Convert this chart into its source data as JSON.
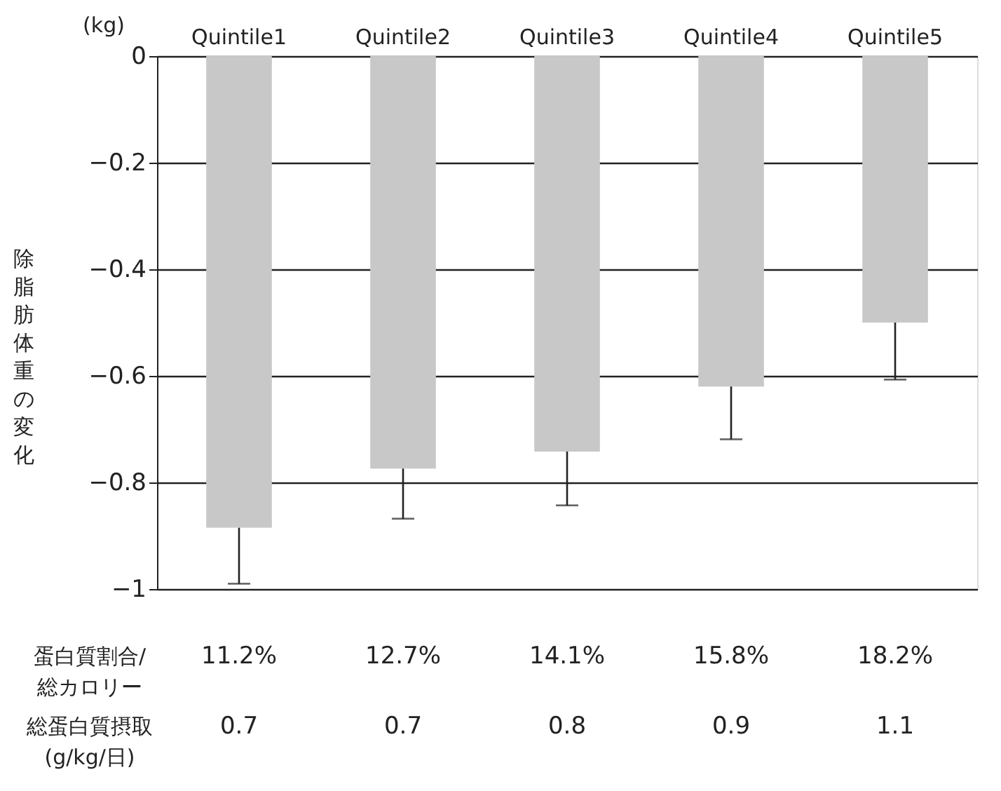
{
  "chart_data": {
    "type": "bar",
    "ylabel": "除脂肪体重の変化",
    "categories": [
      "Quintile1",
      "Quintile2",
      "Quintile3",
      "Quintile4",
      "Quintile5"
    ],
    "values": [
      -0.885,
      -0.774,
      -0.742,
      -0.62,
      -0.5
    ],
    "errors": [
      [
        -0.99,
        -0.885
      ],
      [
        -0.868,
        -0.774
      ],
      [
        -0.843,
        -0.742
      ],
      [
        -0.719,
        -0.62
      ],
      [
        -0.607,
        -0.5
      ]
    ],
    "color": "#c8c8c8",
    "ylim": [
      -1,
      0
    ],
    "yticks": [
      0,
      -0.2,
      -0.4,
      -0.6,
      -0.8,
      -1
    ],
    "grid": "y",
    "annotations": [
      "(kg)",
      "蛋白質割合/\n総カロリー",
      "11.2%",
      "12.7%",
      "14.1%",
      "15.8%",
      "18.2%",
      "総蛋白質摂取\n(g/kg/日)",
      "0.7",
      "0.7",
      "0.8",
      "0.9",
      "1.1"
    ]
  }
}
